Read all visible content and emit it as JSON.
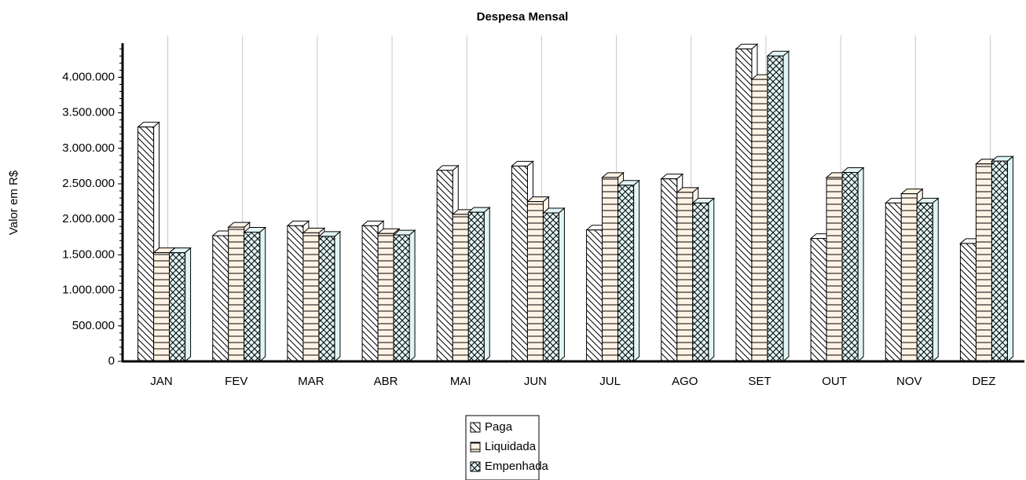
{
  "chart_data": {
    "type": "bar3d",
    "title": "Despesa Mensal",
    "y_label": "Valor em R$",
    "categories": [
      "JAN",
      "FEV",
      "MAR",
      "ABR",
      "MAI",
      "JUN",
      "JUL",
      "AGO",
      "SET",
      "OUT",
      "NOV",
      "DEZ"
    ],
    "series": [
      {
        "name": "Paga",
        "color": "#ffffff",
        "pattern": "diagonal",
        "values": [
          3300000,
          1770000,
          1910000,
          1910000,
          2690000,
          2750000,
          1850000,
          2570000,
          4400000,
          1730000,
          2230000,
          1660000
        ]
      },
      {
        "name": "Liquidada",
        "color": "#fff3e6",
        "pattern": "horizontal",
        "values": [
          1530000,
          1890000,
          1810000,
          1800000,
          2070000,
          2250000,
          2590000,
          2380000,
          3970000,
          2590000,
          2360000,
          2780000
        ]
      },
      {
        "name": "Empenhada",
        "color": "#e2f5f5",
        "pattern": "cross",
        "values": [
          1530000,
          1820000,
          1760000,
          1780000,
          2100000,
          2090000,
          2480000,
          2230000,
          4300000,
          2660000,
          2230000,
          2820000
        ]
      }
    ],
    "ylim": [
      0,
      4480000
    ],
    "yticks": [
      0,
      {
        "value": 500000,
        "label": "500.000"
      },
      {
        "value": 1000000,
        "label": "1.000.000"
      },
      {
        "value": 1500000,
        "label": "1.500.000"
      },
      {
        "value": 2000000,
        "label": "2.000.000"
      },
      {
        "value": 2500000,
        "label": "2.500.000"
      },
      {
        "value": 3000000,
        "label": "3.000.000"
      },
      {
        "value": 3500000,
        "label": "3.500.000"
      },
      {
        "value": 4000000,
        "label": "4.000.000"
      }
    ],
    "grid": true,
    "legend": "bottom"
  }
}
